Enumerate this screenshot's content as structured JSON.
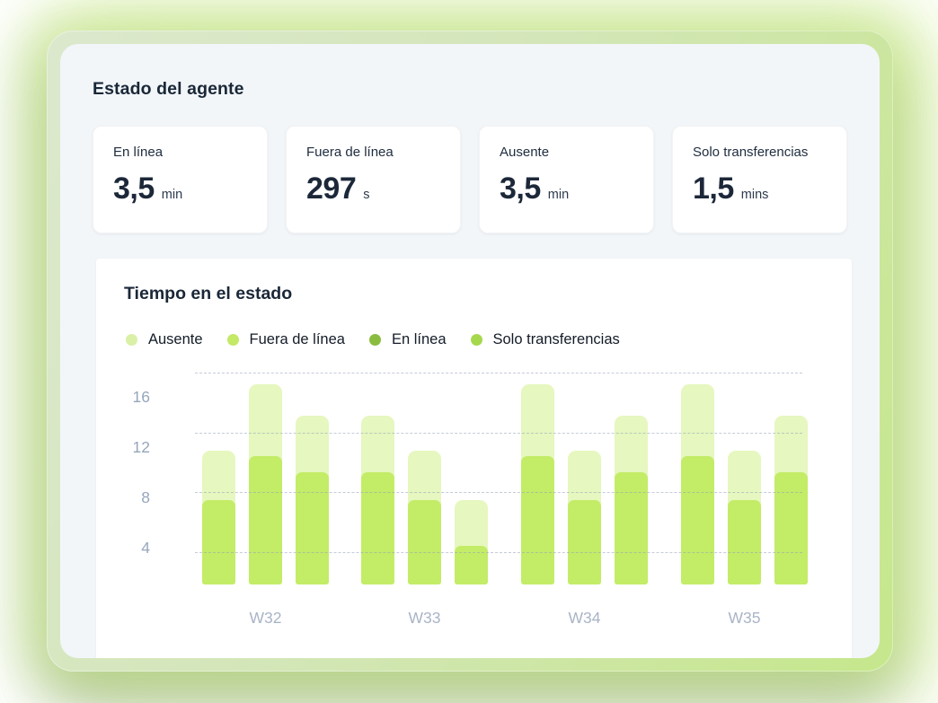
{
  "header": {
    "title": "Estado del agente"
  },
  "stat_cards": [
    {
      "label": "En línea",
      "value": "3,5",
      "unit": "min"
    },
    {
      "label": "Fuera de línea",
      "value": "297",
      "unit": "s"
    },
    {
      "label": "Ausente",
      "value": "3,5",
      "unit": "min"
    },
    {
      "label": "Solo transferencias",
      "value": "1,5",
      "unit": "mins"
    }
  ],
  "chart": {
    "title": "Tiempo en el estado",
    "legend": [
      {
        "label": "Ausente",
        "color": "#d9f0a6"
      },
      {
        "label": "Fuera de línea",
        "color": "#c3e967"
      },
      {
        "label": "En línea",
        "color": "#8abc3f"
      },
      {
        "label": "Solo transferencias",
        "color": "#a6d84e"
      }
    ]
  },
  "chart_data": {
    "type": "bar",
    "stacked": true,
    "title": "Tiempo en el estado",
    "categories": [
      "W32",
      "W33",
      "W34",
      "W35"
    ],
    "bars_per_category": 3,
    "y_ticks": [
      4,
      8,
      12,
      16
    ],
    "ylim": [
      0,
      18
    ],
    "grid": "horizontal-dashed",
    "legend_position": "top",
    "segment_colors": {
      "filled_bottom": "#c3ec67",
      "remainder_top": "rgba(195,236,103,0.42)"
    },
    "values": [
      {
        "category": "W32",
        "bars": [
          {
            "total": 11.7,
            "filled": 7.8
          },
          {
            "total": 17.0,
            "filled": 11.3
          },
          {
            "total": 14.5,
            "filled": 10.0
          }
        ]
      },
      {
        "category": "W33",
        "bars": [
          {
            "total": 14.5,
            "filled": 10.0
          },
          {
            "total": 11.7,
            "filled": 7.8
          },
          {
            "total": 7.8,
            "filled": 4.2
          }
        ]
      },
      {
        "category": "W34",
        "bars": [
          {
            "total": 17.0,
            "filled": 11.3
          },
          {
            "total": 11.7,
            "filled": 7.8
          },
          {
            "total": 14.5,
            "filled": 10.0
          }
        ]
      },
      {
        "category": "W35",
        "bars": [
          {
            "total": 17.0,
            "filled": 11.3
          },
          {
            "total": 11.7,
            "filled": 7.8
          },
          {
            "total": 14.5,
            "filled": 10.0
          }
        ]
      }
    ]
  },
  "colors": {
    "panel_bg": "#f2f6f9",
    "frame_green": "#cde4a6",
    "glow_green": "#c2e878",
    "text_dark": "#1a2737",
    "axis_text": "#97a6bd"
  }
}
